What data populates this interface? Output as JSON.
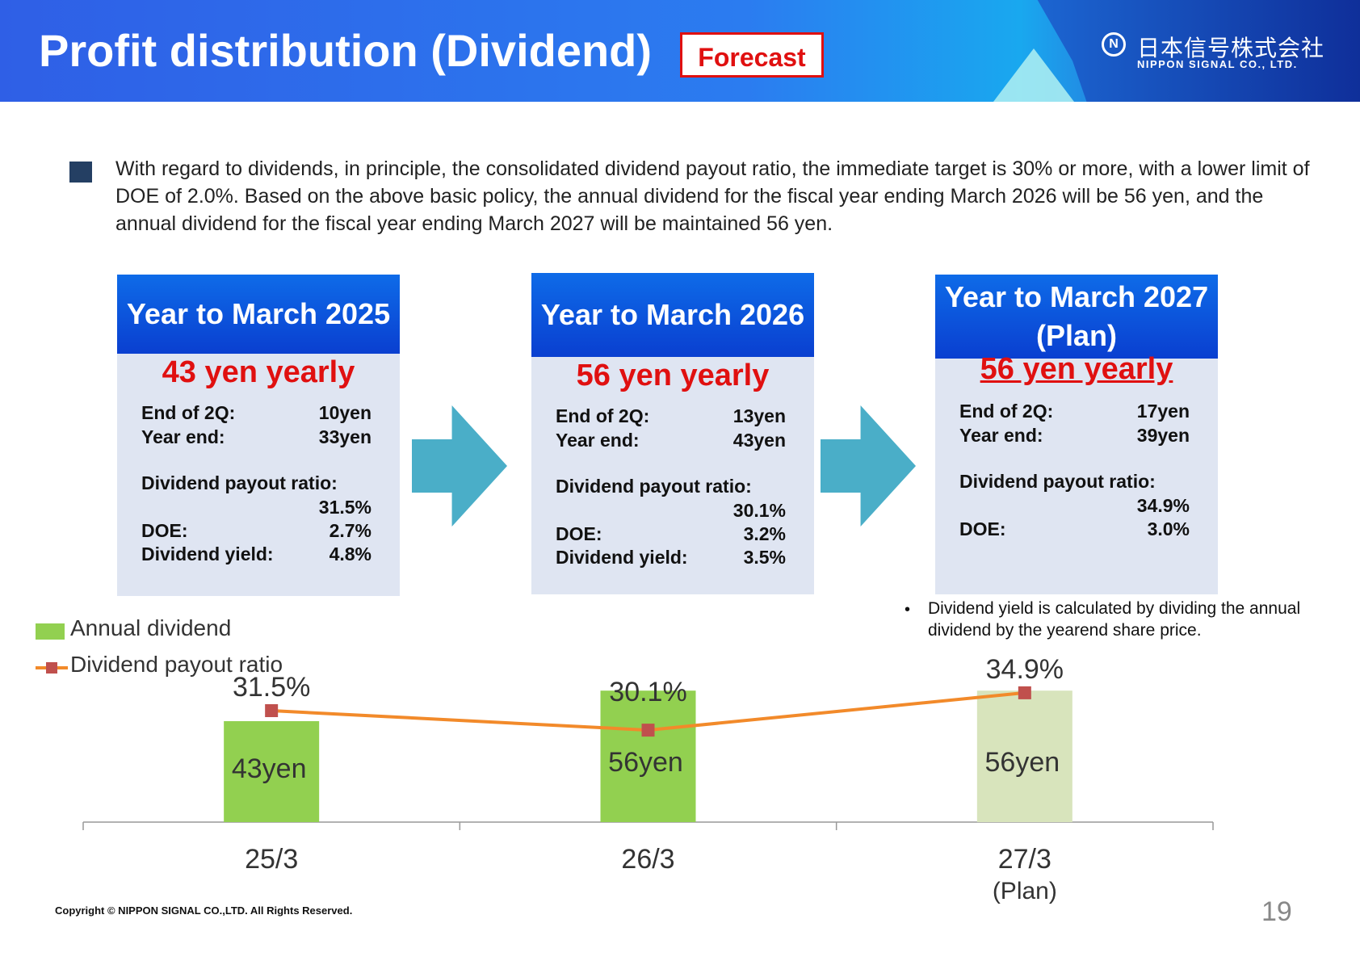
{
  "header": {
    "title": "Profit distribution (Dividend)",
    "badge": "Forecast",
    "logo_jp": "日本信号株式会社",
    "logo_en": "NIPPON SIGNAL CO., LTD.",
    "logo_mark": "N"
  },
  "intro": "With regard to dividends, in principle, the consolidated dividend payout ratio, the immediate target is 30% or more, with a lower limit of DOE of 2.0%. Based on the above basic policy, the annual dividend for the fiscal year ending March 2026 will be 56 yen, and the annual dividend for the fiscal year ending March 2027 will be maintained 56 yen.",
  "cards": [
    {
      "title": "Year to March 2025",
      "amount": "43 yen yearly",
      "end_2q_label": "End of 2Q:",
      "end_2q": "10yen",
      "year_end_label": "Year end:",
      "year_end": "33yen",
      "payout_label": "Dividend payout ratio:",
      "payout": "31.5%",
      "doe_label": "DOE:",
      "doe": "2.7%",
      "yield_label": "Dividend yield:",
      "yield": "4.8%"
    },
    {
      "title": "Year to March 2026",
      "amount": "56 yen yearly",
      "end_2q_label": "End of 2Q:",
      "end_2q": "13yen",
      "year_end_label": "Year end:",
      "year_end": "43yen",
      "payout_label": "Dividend payout ratio:",
      "payout": "30.1%",
      "doe_label": "DOE:",
      "doe": "3.2%",
      "yield_label": "Dividend yield:",
      "yield": "3.5%"
    },
    {
      "title": "Year to March 2027\n(Plan)",
      "amount": "56 yen yearly",
      "end_2q_label": "End of 2Q:",
      "end_2q": "17yen",
      "year_end_label": "Year end:",
      "year_end": "39yen",
      "payout_label": "Dividend payout ratio:",
      "payout": "34.9%",
      "doe_label": "DOE:",
      "doe": "3.0%"
    }
  ],
  "note": "Dividend yield is calculated by dividing the annual dividend by the yearend share price.",
  "note_bullet": "•",
  "chart_data": {
    "type": "bar",
    "categories": [
      "25/3",
      "26/3",
      "27/3"
    ],
    "category_sublabels": [
      "",
      "",
      "(Plan)"
    ],
    "legend_position": "top-left",
    "series": [
      {
        "name": "Annual dividend",
        "type": "bar",
        "values": [
          43,
          56,
          56
        ],
        "labels": [
          "43yen",
          "56yen",
          "56yen"
        ],
        "colors": [
          "#92d050",
          "#92d050",
          "#d8e4bc"
        ]
      },
      {
        "name": "Dividend payout ratio",
        "type": "line",
        "values": [
          31.5,
          30.1,
          34.9
        ],
        "labels": [
          "31.5%",
          "30.1%",
          "34.9%"
        ],
        "line_color": "#f28a2a",
        "marker_color": "#c0504d"
      }
    ],
    "grid": false
  },
  "footer": "Copyright © NIPPON SIGNAL CO.,LTD. All Rights Reserved.",
  "page_number": "19"
}
